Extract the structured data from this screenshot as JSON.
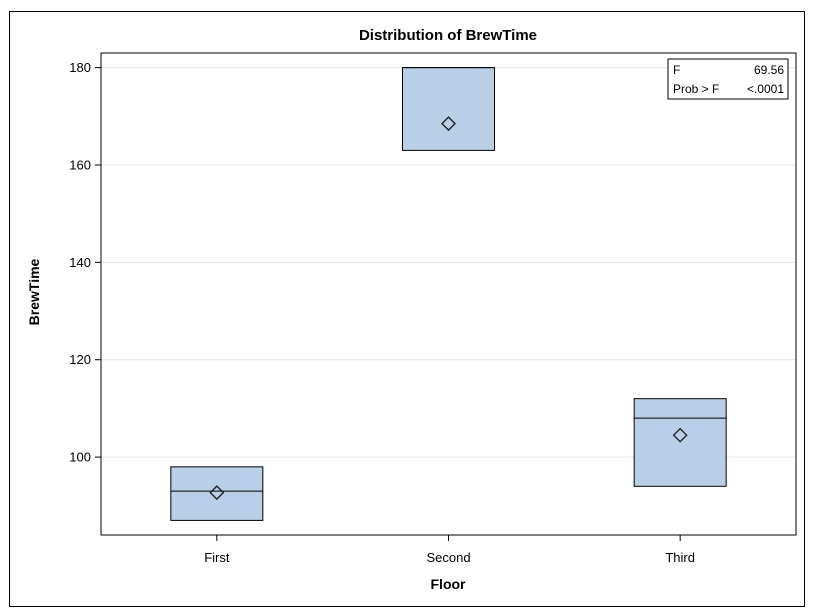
{
  "chart_data": {
    "type": "box",
    "title": "Distribution of  BrewTime",
    "xlabel": "Floor",
    "ylabel": "BrewTime",
    "categories": [
      "First",
      "Second",
      "Third"
    ],
    "ylim": [
      84,
      183
    ],
    "yticks": [
      100,
      120,
      140,
      160,
      180
    ],
    "grid": true,
    "boxes": [
      {
        "category": "First",
        "q1": 87,
        "median": 93,
        "q3": 98,
        "mean": 92.7
      },
      {
        "category": "Second",
        "q1": 163,
        "median": 180,
        "q3": 180,
        "mean": 168.5
      },
      {
        "category": "Third",
        "q1": 94,
        "median": 108,
        "q3": 112,
        "mean": 104.5
      }
    ],
    "stats": {
      "f_label": "F",
      "f_value": "69.56",
      "p_label": "Prob > F",
      "p_value": "<.0001"
    },
    "colors": {
      "box_fill": "#b9cfe8",
      "gridline": "#e6e6e6",
      "outline": "#000000"
    }
  }
}
